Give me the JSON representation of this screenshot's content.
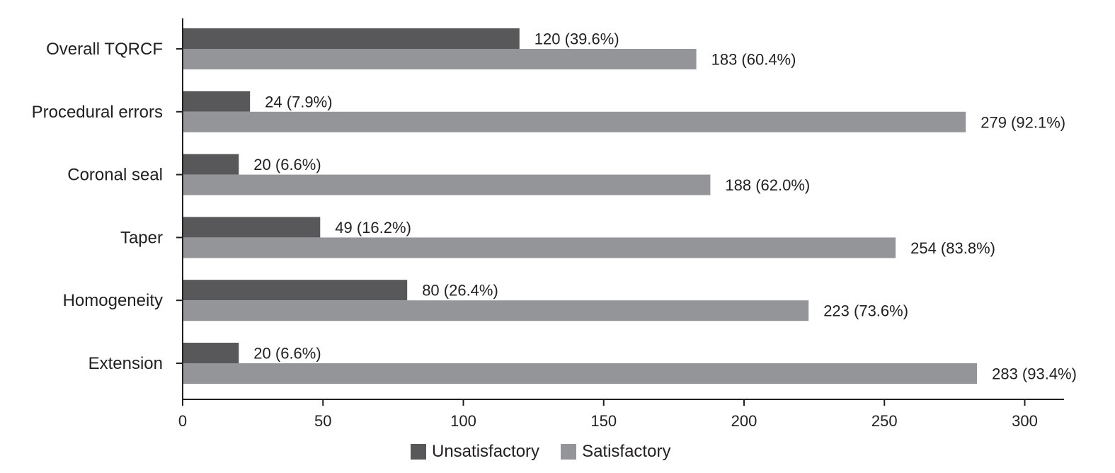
{
  "chart_data": {
    "type": "bar",
    "orientation": "horizontal",
    "title": "",
    "xlabel": "",
    "ylabel": "",
    "xlim": [
      0,
      315
    ],
    "xticks": [
      0,
      50,
      100,
      150,
      200,
      250,
      300
    ],
    "xtick_labels": [
      "0",
      "50",
      "100",
      "150",
      "200",
      "250",
      "300"
    ],
    "categories": [
      "Overall TQRCF",
      "Procedural errors",
      "Coronal seal",
      "Taper",
      "Homogeneity",
      "Extension"
    ],
    "series": [
      {
        "name": "Unsatisfactory",
        "color": "#58585a",
        "values": [
          120,
          24,
          20,
          49,
          80,
          20
        ],
        "labels": [
          "120 (39.6%)",
          "24 (7.9%)",
          "20 (6.6%)",
          "49 (16.2%)",
          "80 (26.4%)",
          "20 (6.6%)"
        ]
      },
      {
        "name": "Satisfactory",
        "color": "#939598",
        "values": [
          183,
          279,
          188,
          254,
          223,
          283
        ],
        "labels": [
          "183 (60.4%)",
          "279 (92.1%)",
          "188 (62.0%)",
          "254 (83.8%)",
          "223 (73.6%)",
          "283 (93.4%)"
        ]
      }
    ],
    "grid": false,
    "legend_position": "bottom"
  }
}
